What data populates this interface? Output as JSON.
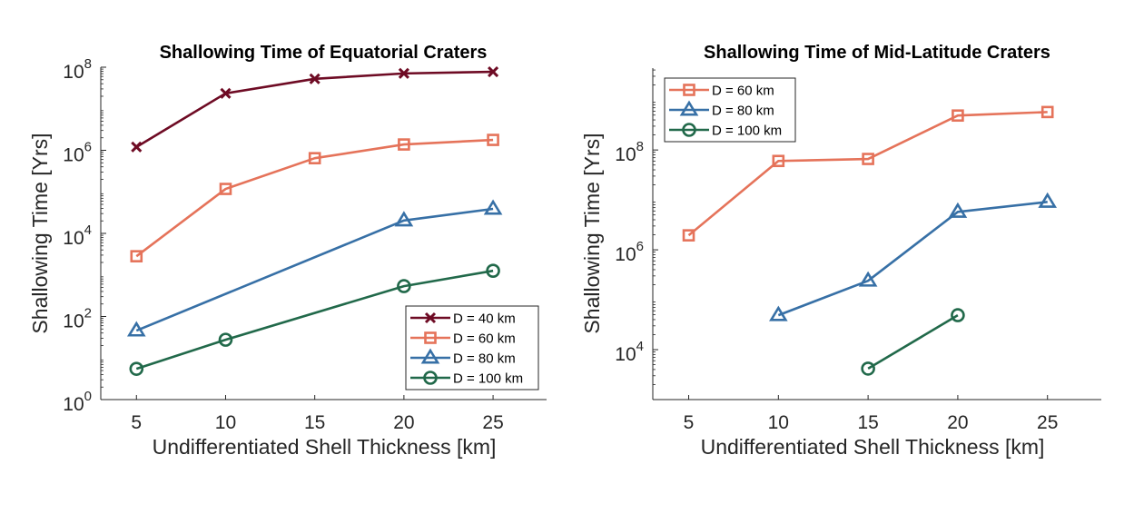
{
  "chart_data": [
    {
      "type": "line",
      "title": "Shallowing Time of Equatorial Craters",
      "xlabel": "Undifferentiated Shell Thickness [km]",
      "ylabel": "Shallowing Time [Yrs]",
      "yscale": "log",
      "ylim": [
        1,
        100000000
      ],
      "ylim_log10": [
        0,
        8
      ],
      "xlim": [
        3,
        28
      ],
      "xticks": [
        5,
        10,
        15,
        20,
        25
      ],
      "yticks_log10": [
        0,
        2,
        4,
        6,
        8
      ],
      "ytick_labels": [
        {
          "base": "10",
          "exp": "0"
        },
        {
          "base": "10",
          "exp": "2"
        },
        {
          "base": "10",
          "exp": "4"
        },
        {
          "base": "10",
          "exp": "6"
        },
        {
          "base": "10",
          "exp": "8"
        }
      ],
      "grid": false,
      "legend_position": "bottom-right",
      "series": [
        {
          "name": "D = 40 km",
          "color": "#6e0b24",
          "marker": "x",
          "x": [
            5,
            10,
            15,
            20,
            25
          ],
          "y_log10": [
            6.08,
            7.37,
            7.72,
            7.85,
            7.89
          ]
        },
        {
          "name": "D = 60 km",
          "color": "#e5735a",
          "marker": "square",
          "x": [
            5,
            10,
            15,
            20,
            25
          ],
          "y_log10": [
            3.45,
            5.07,
            5.81,
            6.14,
            6.25
          ]
        },
        {
          "name": "D = 80 km",
          "color": "#3770a6",
          "marker": "triangle",
          "x": [
            5,
            20,
            25
          ],
          "y_log10": [
            1.66,
            4.31,
            4.59
          ]
        },
        {
          "name": "D = 100 km",
          "color": "#21694a",
          "marker": "circle",
          "x": [
            5,
            10,
            20,
            25
          ],
          "y_log10": [
            0.74,
            1.44,
            2.73,
            3.1
          ]
        }
      ]
    },
    {
      "type": "line",
      "title": "Shallowing Time of Mid-Latitude Craters",
      "xlabel": "Undifferentiated Shell Thickness [km]",
      "ylabel": "Shallowing Time [Yrs]",
      "yscale": "log",
      "ylim_log10": [
        3.0,
        9.64
      ],
      "xlim": [
        3,
        28
      ],
      "xticks": [
        5,
        10,
        15,
        20,
        25
      ],
      "yticks_log10": [
        4,
        6,
        8
      ],
      "ytick_labels": [
        {
          "base": "10",
          "exp": "4"
        },
        {
          "base": "10",
          "exp": "6"
        },
        {
          "base": "10",
          "exp": "8"
        }
      ],
      "grid": false,
      "legend_position": "top-left",
      "series": [
        {
          "name": "D = 60 km",
          "color": "#e5735a",
          "marker": "square",
          "x": [
            5,
            10,
            15,
            20,
            25
          ],
          "y_log10": [
            6.29,
            7.78,
            7.82,
            8.69,
            8.76
          ]
        },
        {
          "name": "D = 80 km",
          "color": "#3770a6",
          "marker": "triangle",
          "x": [
            10,
            15,
            20,
            25
          ],
          "y_log10": [
            4.69,
            5.38,
            6.76,
            6.96
          ]
        },
        {
          "name": "D = 100 km",
          "color": "#21694a",
          "marker": "circle",
          "x": [
            15,
            20
          ],
          "y_log10": [
            3.62,
            4.69
          ]
        }
      ]
    }
  ]
}
